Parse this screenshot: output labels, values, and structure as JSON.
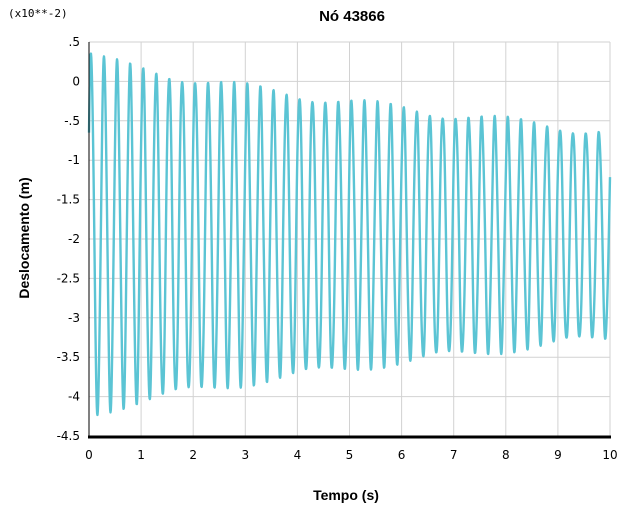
{
  "chart_data": {
    "type": "line",
    "title": "Nó 43866",
    "xlabel": "Tempo (s)",
    "ylabel": "Deslocamento (m)",
    "y_scale_note": "(x10**-2)",
    "xlim": [
      0,
      10
    ],
    "ylim": [
      -4.5,
      0.5
    ],
    "x_ticks": [
      0,
      1,
      2,
      3,
      4,
      5,
      6,
      7,
      8,
      9,
      10
    ],
    "x_tick_labels": [
      "0",
      "1",
      "2",
      "3",
      "4",
      "5",
      "6",
      "7",
      "8",
      "9",
      "10"
    ],
    "y_ticks": [
      0.5,
      0,
      -0.5,
      -1,
      -1.5,
      -2,
      -2.5,
      -3,
      -3.5,
      -4,
      -4.5
    ],
    "y_tick_labels": [
      ".5",
      "0",
      "-.5",
      "-1",
      "-1.5",
      "-2",
      "-2.5",
      "-3",
      "-3.5",
      "-4",
      "-4.5"
    ],
    "grid": true,
    "color": "#5bc4d4",
    "series": [
      {
        "name": "",
        "signal": {
          "kind": "damped-oscillation",
          "frequency_hz": 4.0,
          "mean": -1.95,
          "initial_amplitude": 2.3,
          "final_amplitude": 1.3,
          "t_start": 0.0,
          "t_end": 10.0,
          "initial_value": -0.65
        },
        "envelope_samples": [
          {
            "t": 0.25,
            "max": 0.2,
            "min": -4.25
          },
          {
            "t": 0.5,
            "max": 0.25,
            "min": -4.3
          },
          {
            "t": 1.0,
            "max": 0.1,
            "min": -4.2
          },
          {
            "t": 1.5,
            "max": 0.1,
            "min": -4.1
          },
          {
            "t": 2.0,
            "max": 0.1,
            "min": -4.1
          },
          {
            "t": 2.5,
            "max": 0.0,
            "min": -4.0
          },
          {
            "t": 3.0,
            "max": -0.1,
            "min": -3.9
          },
          {
            "t": 4.0,
            "max": -0.25,
            "min": -3.8
          },
          {
            "t": 5.0,
            "max": -0.35,
            "min": -3.6
          },
          {
            "t": 6.0,
            "max": -0.5,
            "min": -3.5
          },
          {
            "t": 7.0,
            "max": -0.5,
            "min": -3.4
          },
          {
            "t": 8.0,
            "max": -0.55,
            "min": -3.35
          },
          {
            "t": 9.0,
            "max": -0.6,
            "min": -3.3
          },
          {
            "t": 10.0,
            "max": -0.6,
            "min": -3.2
          }
        ]
      }
    ]
  }
}
